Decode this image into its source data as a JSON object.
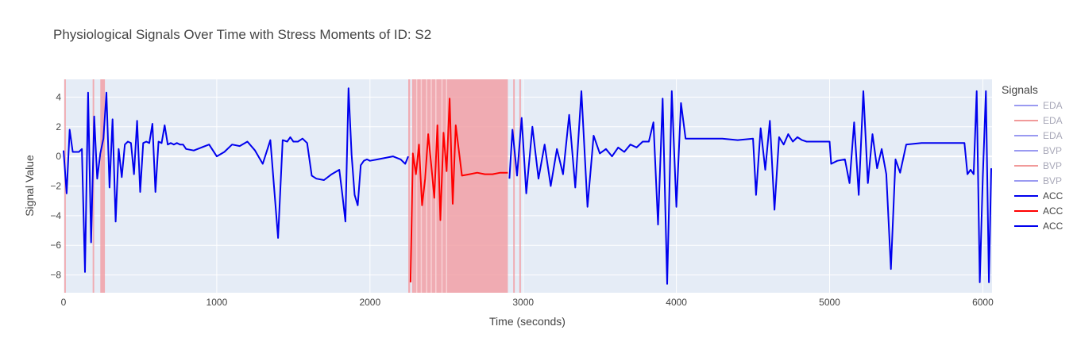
{
  "chart_data": {
    "type": "line",
    "title": "Physiological Signals Over Time with Stress Moments of ID: S2",
    "xlabel": "Time (seconds)",
    "ylabel": "Signal Value",
    "xlim": [
      0,
      6060
    ],
    "ylim": [
      -9.2,
      5.2
    ],
    "x_ticks": [
      0,
      1000,
      2000,
      3000,
      4000,
      5000,
      6000
    ],
    "y_ticks": [
      -8,
      -6,
      -4,
      -2,
      0,
      2,
      4
    ],
    "grid": true,
    "legend_title": "Signals",
    "legend_placement": "right",
    "plot_background": "#e5ecf6",
    "stress_band_color": "#f2a0a6",
    "legend": [
      {
        "label": "EDA",
        "color": "#8f8ff0",
        "faded": true
      },
      {
        "label": "EDA",
        "color": "#f08f8f",
        "faded": true
      },
      {
        "label": "EDA",
        "color": "#8f8ff0",
        "faded": true
      },
      {
        "label": "BVP",
        "color": "#8f8ff0",
        "faded": true
      },
      {
        "label": "BVP",
        "color": "#f08f8f",
        "faded": true
      },
      {
        "label": "BVP",
        "color": "#8f8ff0",
        "faded": true
      },
      {
        "label": "ACC",
        "color": "#0000ee",
        "faded": false
      },
      {
        "label": "ACC",
        "color": "#ff0000",
        "faded": false
      },
      {
        "label": "ACC",
        "color": "#0000ee",
        "faded": false
      }
    ],
    "stress_intervals": [
      [
        5,
        15
      ],
      [
        190,
        200
      ],
      [
        240,
        270
      ],
      [
        2250,
        2262
      ],
      [
        2275,
        2290
      ],
      [
        2290,
        2900
      ],
      [
        2935,
        2945
      ],
      [
        2975,
        2985
      ]
    ],
    "series": [
      {
        "label": "ACC",
        "color": "#0000ee",
        "x": [
          0,
          20,
          40,
          60,
          80,
          100,
          120,
          140,
          160,
          180,
          200,
          220,
          240,
          260,
          280,
          300,
          320,
          340,
          360,
          380,
          400,
          420,
          440,
          460,
          480,
          500,
          520,
          540,
          560,
          580,
          600,
          620,
          640,
          660,
          680,
          700,
          720,
          740,
          760,
          780,
          800,
          850,
          900,
          950,
          1000,
          1050,
          1100,
          1150,
          1200,
          1250,
          1300,
          1350,
          1400,
          1430,
          1460,
          1480,
          1500,
          1530,
          1560,
          1590,
          1620,
          1650,
          1700,
          1750,
          1800,
          1820,
          1840,
          1860,
          1880,
          1900,
          1920,
          1940,
          1960,
          1980,
          2000,
          2050,
          2100,
          2150,
          2200,
          2230,
          2250
        ],
        "y": [
          0.4,
          -2.5,
          1.8,
          0.3,
          0.3,
          0.3,
          0.5,
          -7.8,
          4.3,
          -5.8,
          2.7,
          -1.5,
          0.2,
          1.2,
          4.3,
          -2.1,
          2.5,
          -4.4,
          0.5,
          -1.4,
          0.8,
          1.0,
          0.9,
          -1.2,
          2.4,
          -2.4,
          0.9,
          1.0,
          0.9,
          2.2,
          -2.4,
          1.0,
          0.9,
          2.1,
          0.8,
          0.9,
          0.8,
          0.9,
          0.8,
          0.8,
          0.5,
          0.4,
          0.6,
          0.8,
          0.0,
          0.3,
          0.8,
          0.7,
          1.0,
          0.4,
          -0.5,
          1.1,
          -5.5,
          1.1,
          1.0,
          1.3,
          1.0,
          1.0,
          1.2,
          0.9,
          -1.3,
          -1.5,
          -1.6,
          -1.2,
          -0.9,
          -2.6,
          -4.4,
          4.6,
          0.1,
          -2.6,
          -3.3,
          -0.6,
          -0.3,
          -0.2,
          -0.3,
          -0.2,
          -0.1,
          0.0,
          -0.2,
          -0.5,
          0.0
        ]
      },
      {
        "label": "ACC",
        "color": "#ff0000",
        "x": [
          2265,
          2280,
          2300,
          2320,
          2340,
          2360,
          2380,
          2400,
          2420,
          2440,
          2460,
          2480,
          2500,
          2520,
          2540,
          2560,
          2600,
          2650,
          2700,
          2750,
          2800,
          2850,
          2900
        ],
        "y": [
          -8.5,
          0.2,
          -1.2,
          0.8,
          -3.3,
          -1.5,
          1.5,
          -0.6,
          -2.8,
          2.1,
          -4.3,
          1.6,
          -1.0,
          3.9,
          -3.2,
          2.1,
          -1.3,
          -1.2,
          -1.1,
          -1.2,
          -1.2,
          -1.1,
          -1.1
        ]
      },
      {
        "label": "ACC",
        "color": "#0000ee",
        "x": [
          2910,
          2930,
          2960,
          2990,
          3020,
          3060,
          3100,
          3140,
          3180,
          3220,
          3260,
          3300,
          3340,
          3380,
          3420,
          3460,
          3500,
          3540,
          3580,
          3620,
          3660,
          3700,
          3740,
          3780,
          3820,
          3850,
          3880,
          3910,
          3940,
          3970,
          4000,
          4030,
          4060,
          4100,
          4200,
          4300,
          4400,
          4500,
          4520,
          4550,
          4580,
          4610,
          4640,
          4670,
          4700,
          4730,
          4760,
          4790,
          4820,
          4850,
          4880,
          5000,
          5010,
          5050,
          5100,
          5130,
          5160,
          5190,
          5220,
          5250,
          5280,
          5310,
          5340,
          5370,
          5400,
          5430,
          5460,
          5500,
          5600,
          5700,
          5800,
          5880,
          5900,
          5920,
          5940,
          5960,
          5980,
          6000,
          6020,
          6040,
          6055
        ],
        "y": [
          -1.5,
          1.8,
          -1.3,
          2.6,
          -2.5,
          2.0,
          -1.5,
          0.8,
          -2.0,
          0.5,
          -1.2,
          2.8,
          -2.1,
          4.4,
          -3.4,
          1.4,
          0.2,
          0.5,
          0.0,
          0.6,
          0.3,
          0.8,
          0.6,
          1.0,
          1.0,
          2.3,
          -4.6,
          3.9,
          -8.6,
          4.4,
          -3.4,
          3.6,
          1.2,
          1.2,
          1.2,
          1.2,
          1.1,
          1.2,
          -2.6,
          1.9,
          -0.9,
          2.4,
          -3.6,
          1.3,
          0.8,
          1.5,
          1.0,
          1.3,
          1.1,
          1.0,
          1.0,
          1.0,
          -0.5,
          -0.3,
          -0.2,
          -1.8,
          2.3,
          -2.6,
          4.4,
          -1.8,
          1.5,
          -0.8,
          0.5,
          -1.2,
          -7.6,
          -0.2,
          -1.1,
          0.8,
          0.9,
          0.9,
          0.9,
          0.9,
          -1.2,
          -0.9,
          -1.2,
          4.4,
          -8.5,
          -1.4,
          4.4,
          -8.5,
          -0.8
        ]
      }
    ]
  }
}
